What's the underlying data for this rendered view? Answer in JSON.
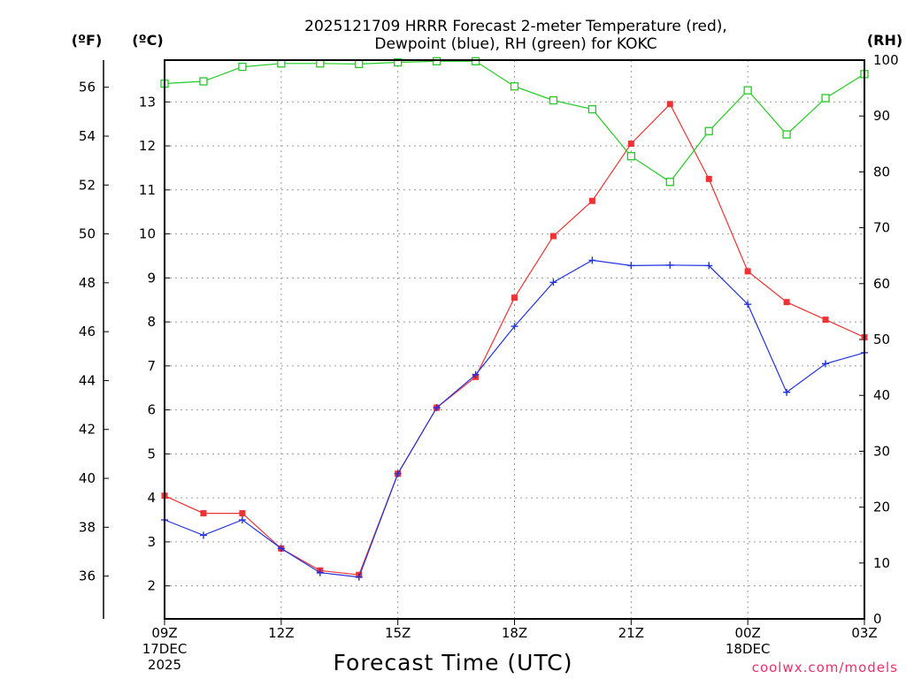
{
  "chart_data": {
    "type": "line",
    "title_line1": "2025121709 HRRR Forecast 2-meter Temperature (red),",
    "title_line2": "Dewpoint (blue), RH (green) for KOKC",
    "xlabel": "Forecast Time (UTC)",
    "credit": "coolwx.com/models",
    "unit_left_f": "(ºF)",
    "unit_left_c": "(ºC)",
    "unit_right": "(RH)",
    "hours": [
      0,
      1,
      2,
      3,
      4,
      5,
      6,
      7,
      8,
      9,
      10,
      11,
      12,
      13,
      14,
      15,
      16,
      17,
      18
    ],
    "x_ticks": [
      {
        "hour": 0,
        "lines": [
          "09Z",
          "17DEC",
          "2025"
        ]
      },
      {
        "hour": 3,
        "lines": [
          "12Z"
        ]
      },
      {
        "hour": 6,
        "lines": [
          "15Z"
        ]
      },
      {
        "hour": 9,
        "lines": [
          "18Z"
        ]
      },
      {
        "hour": 12,
        "lines": [
          "21Z"
        ]
      },
      {
        "hour": 15,
        "lines": [
          "00Z",
          "18DEC"
        ]
      },
      {
        "hour": 18,
        "lines": [
          "03Z"
        ]
      }
    ],
    "celsius_axis": {
      "range": [
        1.25,
        13.95
      ],
      "ticks": [
        "2",
        "3",
        "4",
        "5",
        "6",
        "7",
        "8",
        "9",
        "10",
        "11",
        "12",
        "13"
      ]
    },
    "fahrenheit_axis": {
      "ticks": [
        "36",
        "38",
        "40",
        "42",
        "44",
        "46",
        "48",
        "50",
        "52",
        "54",
        "56"
      ]
    },
    "rh_axis": {
      "range": [
        0,
        100
      ],
      "ticks": [
        "0",
        "10",
        "20",
        "30",
        "40",
        "50",
        "60",
        "70",
        "80",
        "90",
        "100"
      ]
    },
    "series": [
      {
        "name": "Temperature",
        "color": "#ee3333",
        "marker": "filled-square",
        "axis": "celsius",
        "values": [
          4.05,
          3.65,
          3.65,
          2.85,
          2.35,
          2.25,
          4.55,
          6.05,
          6.75,
          8.55,
          9.95,
          10.75,
          12.05,
          12.95,
          11.25,
          9.15,
          8.45,
          8.05,
          7.65
        ]
      },
      {
        "name": "Dewpoint",
        "color": "#2233dd",
        "marker": "plus",
        "axis": "celsius",
        "values": [
          3.5,
          3.15,
          3.5,
          2.85,
          2.3,
          2.2,
          4.55,
          6.05,
          6.8,
          7.9,
          8.9,
          9.4,
          9.28,
          9.29,
          9.28,
          8.4,
          6.4,
          7.05,
          7.3
        ]
      },
      {
        "name": "RH",
        "color": "#22cc22",
        "marker": "open-square",
        "axis": "rh",
        "values": [
          95.8,
          96.2,
          98.8,
          99.4,
          99.4,
          99.3,
          99.6,
          99.8,
          99.8,
          95.3,
          92.8,
          91.2,
          82.8,
          78.2,
          87.3,
          94.6,
          86.7,
          93.2,
          97.5
        ]
      }
    ]
  }
}
